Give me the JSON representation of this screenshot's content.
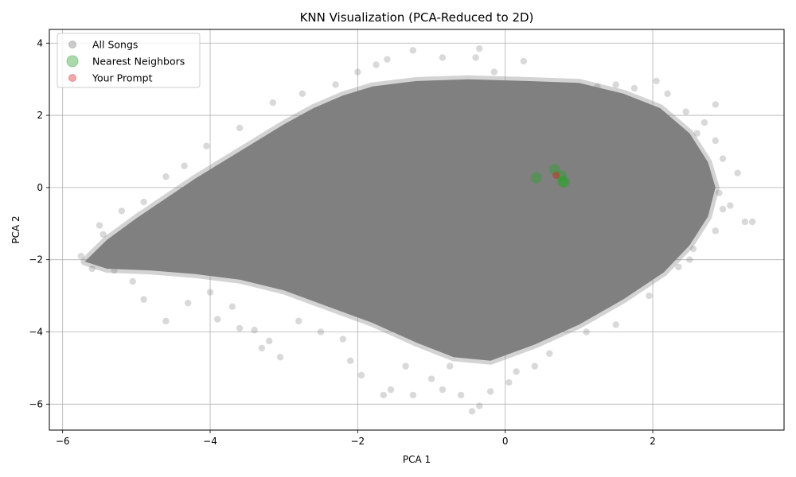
{
  "chart_data": {
    "type": "scatter",
    "title": "KNN Visualization (PCA-Reduced to 2D)",
    "xlabel": "PCA 1",
    "ylabel": "PCA 2",
    "xlim": [
      -6.18,
      3.78
    ],
    "ylim": [
      -6.72,
      4.38
    ],
    "xticks": [
      -6,
      -4,
      -2,
      0,
      2
    ],
    "yticks": [
      -6,
      -4,
      -2,
      0,
      2,
      4
    ],
    "xtick_labels": [
      "−6",
      "−4",
      "−2",
      "0",
      "2"
    ],
    "ytick_labels": [
      "−6",
      "−4",
      "−2",
      "0",
      "2",
      "4"
    ],
    "grid": true,
    "legend_position": "upper-left",
    "colors": {
      "all_songs": "#808080",
      "nearest_neighbors": "#2ca02c",
      "your_prompt": "#d62728"
    },
    "series": [
      {
        "name": "All Songs",
        "marker_size": "small",
        "opacity": 0.2,
        "main_region_polygon": [
          [
            -5.7,
            -2.05
          ],
          [
            -5.4,
            -1.45
          ],
          [
            -5.0,
            -0.85
          ],
          [
            -4.6,
            -0.3
          ],
          [
            -4.2,
            0.25
          ],
          [
            -3.8,
            0.75
          ],
          [
            -3.4,
            1.25
          ],
          [
            -3.0,
            1.75
          ],
          [
            -2.6,
            2.2
          ],
          [
            -2.2,
            2.55
          ],
          [
            -1.8,
            2.8
          ],
          [
            -1.2,
            2.95
          ],
          [
            -0.5,
            3.0
          ],
          [
            0.3,
            2.95
          ],
          [
            1.0,
            2.9
          ],
          [
            1.6,
            2.6
          ],
          [
            2.1,
            2.2
          ],
          [
            2.5,
            1.5
          ],
          [
            2.75,
            0.7
          ],
          [
            2.85,
            0.0
          ],
          [
            2.75,
            -0.8
          ],
          [
            2.5,
            -1.6
          ],
          [
            2.15,
            -2.35
          ],
          [
            1.6,
            -3.1
          ],
          [
            1.0,
            -3.8
          ],
          [
            0.4,
            -4.35
          ],
          [
            -0.2,
            -4.8
          ],
          [
            -0.7,
            -4.7
          ],
          [
            -1.2,
            -4.3
          ],
          [
            -1.8,
            -3.75
          ],
          [
            -2.4,
            -3.3
          ],
          [
            -3.0,
            -2.85
          ],
          [
            -3.6,
            -2.55
          ],
          [
            -4.2,
            -2.4
          ],
          [
            -4.8,
            -2.3
          ],
          [
            -5.4,
            -2.25
          ]
        ],
        "outlier_points": [
          [
            -5.75,
            -1.9
          ],
          [
            -5.6,
            -2.25
          ],
          [
            -5.3,
            -2.3
          ],
          [
            -5.05,
            -2.6
          ],
          [
            -4.9,
            -3.1
          ],
          [
            -4.6,
            -3.7
          ],
          [
            -4.3,
            -3.2
          ],
          [
            -4.0,
            -2.9
          ],
          [
            -3.9,
            -3.65
          ],
          [
            -3.6,
            -3.9
          ],
          [
            -3.4,
            -3.95
          ],
          [
            -3.3,
            -4.45
          ],
          [
            -3.05,
            -4.7
          ],
          [
            -3.2,
            -4.25
          ],
          [
            -2.8,
            -3.7
          ],
          [
            -2.5,
            -4.0
          ],
          [
            -2.1,
            -4.8
          ],
          [
            -1.95,
            -5.2
          ],
          [
            -1.65,
            -5.75
          ],
          [
            -1.55,
            -5.6
          ],
          [
            -1.25,
            -5.75
          ],
          [
            -1.0,
            -5.3
          ],
          [
            -0.85,
            -5.6
          ],
          [
            -0.6,
            -5.75
          ],
          [
            -0.45,
            -6.2
          ],
          [
            -0.35,
            -6.05
          ],
          [
            -0.2,
            -5.65
          ],
          [
            0.15,
            -5.1
          ],
          [
            0.4,
            -4.95
          ],
          [
            0.6,
            -4.6
          ],
          [
            1.1,
            -4.0
          ],
          [
            1.5,
            -3.8
          ],
          [
            1.95,
            -3.0
          ],
          [
            2.35,
            -2.2
          ],
          [
            2.55,
            -1.7
          ],
          [
            2.85,
            -1.2
          ],
          [
            2.95,
            -0.6
          ],
          [
            3.05,
            -0.5
          ],
          [
            3.15,
            0.4
          ],
          [
            3.25,
            -0.95
          ],
          [
            3.35,
            -0.95
          ],
          [
            2.95,
            0.8
          ],
          [
            2.85,
            1.3
          ],
          [
            2.85,
            2.3
          ],
          [
            2.7,
            1.8
          ],
          [
            2.2,
            2.6
          ],
          [
            2.05,
            2.95
          ],
          [
            1.75,
            2.75
          ],
          [
            1.5,
            2.85
          ],
          [
            1.25,
            2.8
          ],
          [
            0.25,
            3.5
          ],
          [
            -0.15,
            3.2
          ],
          [
            -0.4,
            3.6
          ],
          [
            -0.35,
            3.85
          ],
          [
            -0.85,
            3.6
          ],
          [
            -1.25,
            3.8
          ],
          [
            -1.6,
            3.55
          ],
          [
            -1.75,
            3.4
          ],
          [
            -2.0,
            3.2
          ],
          [
            -2.3,
            2.85
          ],
          [
            -2.75,
            2.6
          ],
          [
            -3.15,
            2.35
          ],
          [
            -3.6,
            1.65
          ],
          [
            -4.05,
            1.15
          ],
          [
            -4.35,
            0.6
          ],
          [
            -4.6,
            0.3
          ],
          [
            -4.9,
            -0.4
          ],
          [
            -5.2,
            -0.65
          ],
          [
            -5.45,
            -1.3
          ],
          [
            -5.5,
            -1.05
          ],
          [
            2.45,
            2.1
          ],
          [
            2.6,
            1.5
          ],
          [
            2.75,
            0.2
          ],
          [
            2.9,
            -0.15
          ],
          [
            2.5,
            -2.0
          ],
          [
            -0.75,
            -4.95
          ],
          [
            0.05,
            -5.4
          ],
          [
            -1.35,
            -4.95
          ],
          [
            -2.2,
            -4.2
          ],
          [
            -3.7,
            -3.3
          ]
        ]
      },
      {
        "name": "Nearest Neighbors",
        "marker_size": "large",
        "opacity": 0.25,
        "x": [
          0.42,
          0.67,
          0.78,
          0.8,
          0.76
        ],
        "y": [
          0.27,
          0.5,
          0.17,
          0.15,
          0.32
        ]
      },
      {
        "name": "Your Prompt",
        "marker_size": "medium",
        "opacity": 0.25,
        "x": [
          0.69
        ],
        "y": [
          0.34
        ]
      }
    ]
  }
}
